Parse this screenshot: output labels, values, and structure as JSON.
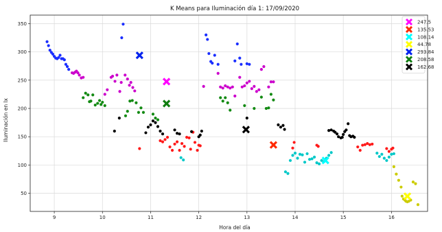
{
  "chart_data": {
    "type": "scatter",
    "title": "K Means para Iluminación día 1: 17/09/2020",
    "xlabel": "Hora del día",
    "ylabel": "Iluminación en lx",
    "xlim": [
      8.5,
      16.75
    ],
    "ylim": [
      18,
      365
    ],
    "x_ticks": [
      9,
      10,
      11,
      12,
      13,
      14,
      15,
      16
    ],
    "y_ticks": [
      50,
      100,
      150,
      200,
      250,
      300,
      350
    ],
    "grid": true,
    "legend_position": "top-right",
    "clusters": [
      {
        "name": "247.5",
        "color": "#cc00cc",
        "centroid_color": "#ff00ff",
        "centroid": [
          11.33,
          247.5
        ],
        "points": [
          [
            9.37,
            263
          ],
          [
            9.4,
            262
          ],
          [
            9.43,
            264
          ],
          [
            9.46,
            266
          ],
          [
            9.49,
            263
          ],
          [
            9.52,
            259
          ],
          [
            9.56,
            254
          ],
          [
            9.6,
            255
          ],
          [
            10.05,
            225
          ],
          [
            10.1,
            233
          ],
          [
            10.18,
            255
          ],
          [
            10.21,
            257
          ],
          [
            10.26,
            248
          ],
          [
            10.3,
            259
          ],
          [
            10.36,
            230
          ],
          [
            10.39,
            246
          ],
          [
            10.47,
            259
          ],
          [
            10.52,
            252
          ],
          [
            10.56,
            241
          ],
          [
            10.59,
            246
          ],
          [
            10.63,
            237
          ],
          [
            10.67,
            231
          ],
          [
            12.1,
            239
          ],
          [
            12.4,
            262
          ],
          [
            12.45,
            238
          ],
          [
            12.5,
            236
          ],
          [
            12.55,
            240
          ],
          [
            12.6,
            238
          ],
          [
            12.65,
            236
          ],
          [
            12.7,
            238
          ],
          [
            12.75,
            222
          ],
          [
            12.85,
            255
          ],
          [
            12.9,
            238
          ],
          [
            12.95,
            240
          ],
          [
            13.0,
            245
          ],
          [
            13.05,
            248
          ],
          [
            13.1,
            235
          ],
          [
            13.15,
            239
          ],
          [
            13.2,
            230
          ],
          [
            13.25,
            233
          ],
          [
            13.3,
            269
          ],
          [
            13.35,
            274
          ],
          [
            13.45,
            238
          ],
          [
            13.5,
            247
          ],
          [
            13.55,
            247
          ]
        ]
      },
      {
        "name": "135.53",
        "color": "#ff1a1a",
        "centroid_color": "#ff2a00",
        "centroid": [
          13.55,
          135.53
        ],
        "points": [
          [
            10.77,
            129
          ],
          [
            11.2,
            143
          ],
          [
            11.25,
            141
          ],
          [
            11.3,
            145
          ],
          [
            11.35,
            149
          ],
          [
            11.4,
            132
          ],
          [
            11.45,
            126
          ],
          [
            11.5,
            137
          ],
          [
            11.55,
            141
          ],
          [
            11.6,
            126
          ],
          [
            11.65,
            138
          ],
          [
            11.7,
            133
          ],
          [
            11.75,
            149
          ],
          [
            11.8,
            148
          ],
          [
            11.83,
            128
          ],
          [
            11.88,
            158
          ],
          [
            11.92,
            140
          ],
          [
            11.97,
            126
          ],
          [
            12.0,
            135
          ],
          [
            12.03,
            134
          ],
          [
            13.95,
            130
          ],
          [
            13.98,
            140
          ],
          [
            14.45,
            135
          ],
          [
            14.48,
            133
          ],
          [
            15.3,
            132
          ],
          [
            15.35,
            126
          ],
          [
            15.4,
            135
          ],
          [
            15.45,
            136
          ],
          [
            15.5,
            138
          ],
          [
            15.55,
            136
          ],
          [
            15.6,
            137
          ],
          [
            15.9,
            129
          ],
          [
            15.95,
            124
          ],
          [
            16.0,
            128
          ],
          [
            16.03,
            130
          ]
        ]
      },
      {
        "name": "108.14",
        "color": "#00c8c8",
        "centroid_color": "#00ffff",
        "centroid": [
          14.63,
          108.14
        ],
        "points": [
          [
            11.63,
            113
          ],
          [
            11.68,
            109
          ],
          [
            13.8,
            88
          ],
          [
            13.85,
            85
          ],
          [
            13.9,
            108
          ],
          [
            13.95,
            117
          ],
          [
            14.0,
            121
          ],
          [
            14.05,
            112
          ],
          [
            14.1,
            119
          ],
          [
            14.15,
            118
          ],
          [
            14.2,
            105
          ],
          [
            14.25,
            120
          ],
          [
            14.3,
            110
          ],
          [
            14.35,
            111
          ],
          [
            14.4,
            114
          ],
          [
            14.45,
            104
          ],
          [
            14.5,
            102
          ],
          [
            14.55,
            108
          ],
          [
            14.6,
            106
          ],
          [
            14.65,
            112
          ],
          [
            14.7,
            117
          ],
          [
            14.75,
            122
          ],
          [
            15.7,
            121
          ],
          [
            15.75,
            115
          ],
          [
            15.8,
            119
          ],
          [
            15.85,
            112
          ],
          [
            15.9,
            108
          ],
          [
            15.95,
            114
          ],
          [
            16.0,
            119
          ],
          [
            16.05,
            120
          ]
        ]
      },
      {
        "name": "44.78",
        "color": "#cccc00",
        "centroid_color": "#ffff00",
        "centroid": [
          16.33,
          44.78
        ],
        "points": [
          [
            16.05,
            97
          ],
          [
            16.1,
            84
          ],
          [
            16.15,
            73
          ],
          [
            16.2,
            61
          ],
          [
            16.22,
            45
          ],
          [
            16.25,
            40
          ],
          [
            16.28,
            38
          ],
          [
            16.3,
            36
          ],
          [
            16.33,
            35
          ],
          [
            16.36,
            36
          ],
          [
            16.4,
            38
          ],
          [
            16.45,
            70
          ],
          [
            16.5,
            67
          ],
          [
            16.55,
            30
          ]
        ]
      },
      {
        "name": "293.84",
        "color": "#1a2eff",
        "centroid_color": "#0022ee",
        "centroid": [
          10.77,
          293.84
        ],
        "points": [
          [
            8.85,
            318
          ],
          [
            8.88,
            311
          ],
          [
            8.91,
            303
          ],
          [
            8.94,
            299
          ],
          [
            8.97,
            296
          ],
          [
            9.0,
            292
          ],
          [
            9.03,
            289
          ],
          [
            9.06,
            288
          ],
          [
            9.09,
            290
          ],
          [
            9.12,
            294
          ],
          [
            9.15,
            288
          ],
          [
            9.18,
            288
          ],
          [
            9.21,
            286
          ],
          [
            9.24,
            278
          ],
          [
            9.27,
            274
          ],
          [
            9.3,
            269
          ],
          [
            10.4,
            325
          ],
          [
            10.43,
            349
          ],
          [
            12.15,
            330
          ],
          [
            12.18,
            322
          ],
          [
            12.21,
            297
          ],
          [
            12.25,
            283
          ],
          [
            12.28,
            280
          ],
          [
            12.33,
            294
          ],
          [
            12.4,
            278
          ],
          [
            12.75,
            284
          ],
          [
            12.8,
            314
          ],
          [
            12.85,
            289
          ],
          [
            12.88,
            278
          ],
          [
            13.0,
            279
          ],
          [
            13.05,
            278
          ]
        ]
      },
      {
        "name": "208.58",
        "color": "#138a13",
        "centroid_color": "#0f7d0f",
        "centroid": [
          11.33,
          208.58
        ],
        "points": [
          [
            9.6,
            219
          ],
          [
            9.65,
            227
          ],
          [
            9.7,
            224
          ],
          [
            9.73,
            212
          ],
          [
            9.76,
            213
          ],
          [
            9.8,
            224
          ],
          [
            9.85,
            206
          ],
          [
            9.9,
            209
          ],
          [
            9.94,
            214
          ],
          [
            9.97,
            207
          ],
          [
            10.0,
            211
          ],
          [
            10.05,
            205
          ],
          [
            10.48,
            187
          ],
          [
            10.52,
            195
          ],
          [
            10.57,
            213
          ],
          [
            10.62,
            214
          ],
          [
            10.7,
            210
          ],
          [
            10.75,
            193
          ],
          [
            10.8,
            201
          ],
          [
            10.85,
            193
          ],
          [
            11.05,
            190
          ],
          [
            11.1,
            183
          ],
          [
            11.15,
            180
          ],
          [
            12.45,
            219
          ],
          [
            12.5,
            213
          ],
          [
            12.55,
            219
          ],
          [
            12.6,
            210
          ],
          [
            12.65,
            197
          ],
          [
            12.95,
            205
          ],
          [
            13.15,
            200
          ],
          [
            13.3,
            220
          ],
          [
            13.4,
            200
          ],
          [
            13.45,
            201
          ],
          [
            13.5,
            225
          ],
          [
            13.55,
            215
          ]
        ]
      },
      {
        "name": "162.68",
        "color": "#000000",
        "centroid_color": "#000000",
        "centroid": [
          12.98,
          162.68
        ],
        "points": [
          [
            10.25,
            160
          ],
          [
            10.35,
            183
          ],
          [
            10.9,
            157
          ],
          [
            10.95,
            167
          ],
          [
            11.0,
            171
          ],
          [
            11.05,
            178
          ],
          [
            11.1,
            175
          ],
          [
            11.15,
            168
          ],
          [
            11.2,
            160
          ],
          [
            11.25,
            155
          ],
          [
            11.5,
            162
          ],
          [
            11.55,
            156
          ],
          [
            11.6,
            155
          ],
          [
            11.85,
            159
          ],
          [
            12.0,
            150
          ],
          [
            12.03,
            153
          ],
          [
            12.06,
            160
          ],
          [
            13.0,
            183
          ],
          [
            13.65,
            171
          ],
          [
            13.7,
            167
          ],
          [
            13.75,
            170
          ],
          [
            13.78,
            163
          ],
          [
            14.7,
            161
          ],
          [
            14.75,
            162
          ],
          [
            14.8,
            160
          ],
          [
            14.83,
            158
          ],
          [
            14.87,
            155
          ],
          [
            14.9,
            150
          ],
          [
            14.95,
            148
          ],
          [
            14.98,
            149
          ],
          [
            15.0,
            154
          ],
          [
            15.03,
            159
          ],
          [
            15.06,
            162
          ],
          [
            15.1,
            173
          ],
          [
            15.13,
            152
          ],
          [
            15.16,
            150
          ],
          [
            15.2,
            151
          ],
          [
            15.23,
            149
          ]
        ]
      }
    ]
  }
}
